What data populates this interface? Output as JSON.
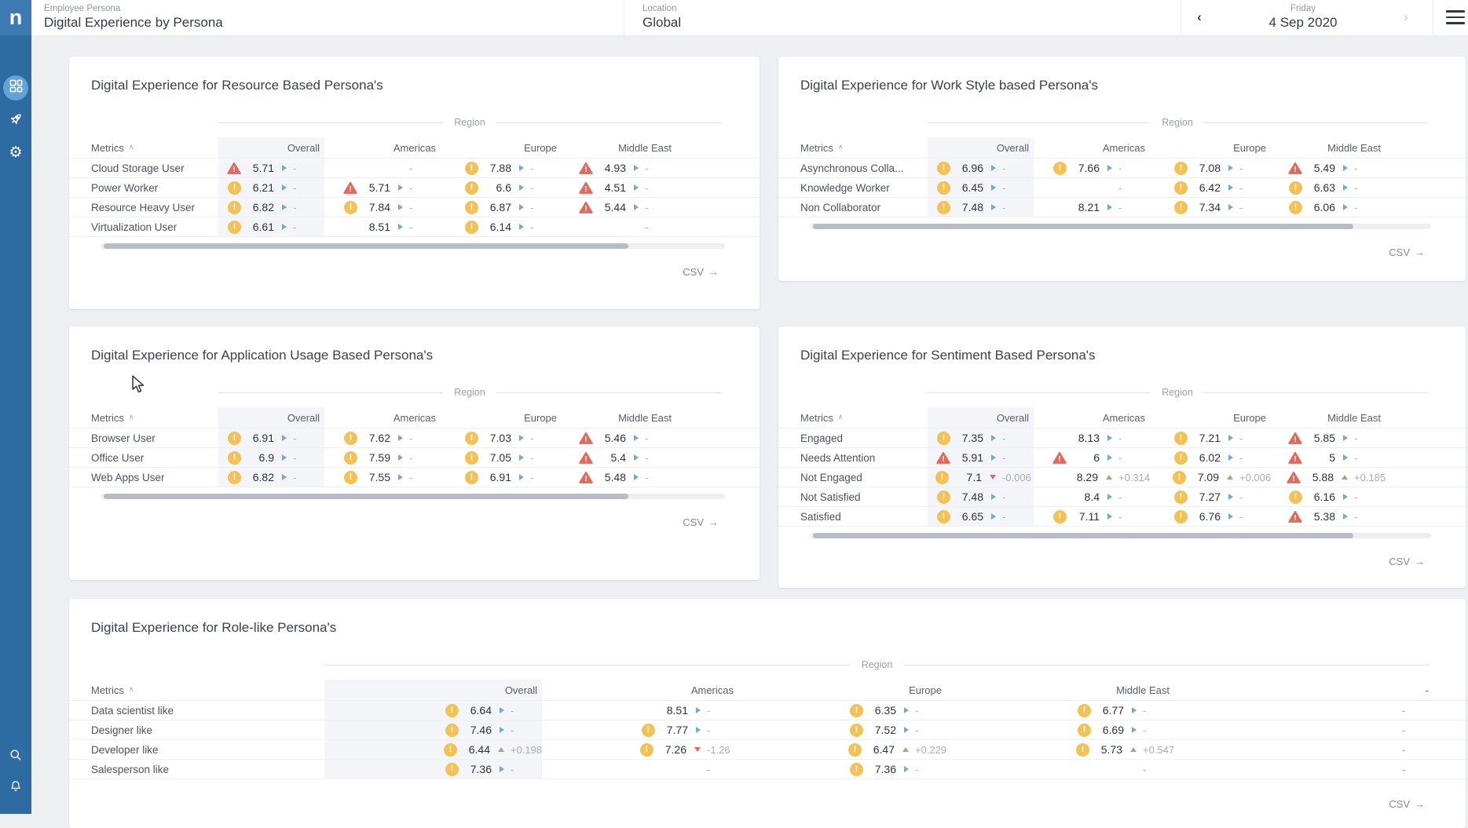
{
  "app": {
    "logo_letter": "n"
  },
  "colors": {
    "sidebar": "#2e6ba3",
    "sidebar_logo": "#3d7ab2",
    "active_nav": "#61a3d8",
    "warning": "#f3c156",
    "alert": "#e4695d",
    "trend_flat": "#73a9d9",
    "trend_up": "#8cb873",
    "trend_down": "#e4695d",
    "overall_band": "#f3f5f8",
    "page_bg": "#edeff3"
  },
  "header": {
    "context_label": "Employee Persona",
    "title": "Digital Experience by Persona",
    "location_label": "Location",
    "location_value": "Global",
    "date_day": "Friday",
    "date_value": "4 Sep 2020",
    "prev_icon": "‹",
    "next_icon": "›"
  },
  "sidebar_icons": [
    "dashboards",
    "launch",
    "settings",
    "search",
    "notifications"
  ],
  "table_common": {
    "empty_placeholder": "-",
    "sort_caret": "∧",
    "csv_label": "CSV",
    "csv_arrow": "→",
    "cell_format": [
      "status",
      "value",
      "trend",
      "trend_value"
    ]
  },
  "cards": [
    {
      "title": "Digital Experience for Resource Based Persona's",
      "region_label": "Region",
      "columns": {
        "metric": "Metrics",
        "regions": [
          "Overall",
          "Americas",
          "Europe",
          "Middle East"
        ]
      },
      "rows": [
        {
          "metric": "Cloud Storage User",
          "cells": [
            [
              "alert",
              "5.71",
              "flat",
              "-"
            ],
            null,
            [
              "warn",
              "7.88",
              "flat",
              "-"
            ],
            [
              "alert",
              "4.93",
              "flat",
              "-"
            ]
          ]
        },
        {
          "metric": "Power Worker",
          "cells": [
            [
              "warn",
              "6.21",
              "flat",
              "-"
            ],
            [
              "alert",
              "5.71",
              "flat",
              "-"
            ],
            [
              "warn",
              "6.6",
              "flat",
              "-"
            ],
            [
              "alert",
              "4.51",
              "flat",
              "-"
            ]
          ]
        },
        {
          "metric": "Resource Heavy User",
          "cells": [
            [
              "warn",
              "6.82",
              "flat",
              "-"
            ],
            [
              "warn",
              "7.84",
              "flat",
              "-"
            ],
            [
              "warn",
              "6.87",
              "flat",
              "-"
            ],
            [
              "alert",
              "5.44",
              "flat",
              "-"
            ]
          ]
        },
        {
          "metric": "Virtualization User",
          "cells": [
            [
              "warn",
              "6.61",
              "flat",
              "-"
            ],
            [
              null,
              "8.51",
              "flat",
              "-"
            ],
            [
              "warn",
              "6.14",
              "flat",
              "-"
            ],
            null
          ]
        }
      ],
      "scrollbar_thumb_percent": 84
    },
    {
      "title": "Digital Experience for Work Style based Persona's",
      "region_label": "Region",
      "columns": {
        "metric": "Metrics",
        "regions": [
          "Overall",
          "Americas",
          "Europe",
          "Middle East"
        ]
      },
      "rows": [
        {
          "metric": "Asynchronous Colla...",
          "cells": [
            [
              "warn",
              "6.96",
              "flat",
              "-"
            ],
            [
              "warn",
              "7.66",
              "flat",
              "-"
            ],
            [
              "warn",
              "7.08",
              "flat",
              "-"
            ],
            [
              "alert",
              "5.49",
              "flat",
              "-"
            ]
          ]
        },
        {
          "metric": "Knowledge Worker",
          "cells": [
            [
              "warn",
              "6.45",
              "flat",
              "-"
            ],
            null,
            [
              "warn",
              "6.42",
              "flat",
              "-"
            ],
            [
              "warn",
              "6.63",
              "flat",
              "-"
            ]
          ]
        },
        {
          "metric": "Non Collaborator",
          "cells": [
            [
              "warn",
              "7.48",
              "flat",
              "-"
            ],
            [
              null,
              "8.21",
              "flat",
              "-"
            ],
            [
              "warn",
              "7.34",
              "flat",
              "-"
            ],
            [
              "warn",
              "6.06",
              "flat",
              "-"
            ]
          ]
        }
      ],
      "scrollbar_thumb_percent": 87
    },
    {
      "title": "Digital Experience for Application Usage Based Persona's",
      "region_label": "Region",
      "columns": {
        "metric": "Metrics",
        "regions": [
          "Overall",
          "Americas",
          "Europe",
          "Middle East"
        ]
      },
      "rows": [
        {
          "metric": "Browser User",
          "cells": [
            [
              "warn",
              "6.91",
              "flat",
              "-"
            ],
            [
              "warn",
              "7.62",
              "flat",
              "-"
            ],
            [
              "warn",
              "7.03",
              "flat",
              "-"
            ],
            [
              "alert",
              "5.46",
              "flat",
              "-"
            ]
          ]
        },
        {
          "metric": "Office User",
          "cells": [
            [
              "warn",
              "6.9",
              "flat",
              "-"
            ],
            [
              "warn",
              "7.59",
              "flat",
              "-"
            ],
            [
              "warn",
              "7.05",
              "flat",
              "-"
            ],
            [
              "alert",
              "5.4",
              "flat",
              "-"
            ]
          ]
        },
        {
          "metric": "Web Apps User",
          "cells": [
            [
              "warn",
              "6.82",
              "flat",
              "-"
            ],
            [
              "warn",
              "7.55",
              "flat",
              "-"
            ],
            [
              "warn",
              "6.91",
              "flat",
              "-"
            ],
            [
              "alert",
              "5.48",
              "flat",
              "-"
            ]
          ]
        }
      ],
      "scrollbar_thumb_percent": 84
    },
    {
      "title": "Digital Experience for Sentiment Based Persona's",
      "region_label": "Region",
      "columns": {
        "metric": "Metrics",
        "regions": [
          "Overall",
          "Americas",
          "Europe",
          "Middle East"
        ]
      },
      "rows": [
        {
          "metric": "Engaged",
          "cells": [
            [
              "warn",
              "7.35",
              "flat",
              "-"
            ],
            [
              null,
              "8.13",
              "flat",
              "-"
            ],
            [
              "warn",
              "7.21",
              "flat",
              "-"
            ],
            [
              "alert",
              "5.85",
              "flat",
              "-"
            ]
          ]
        },
        {
          "metric": "Needs Attention",
          "cells": [
            [
              "alert",
              "5.91",
              "flat",
              "-"
            ],
            [
              "alert",
              "6",
              "flat",
              "-"
            ],
            [
              "warn",
              "6.02",
              "flat",
              "-"
            ],
            [
              "alert",
              "5",
              "flat",
              "-"
            ]
          ]
        },
        {
          "metric": "Not Engaged",
          "cells": [
            [
              "warn",
              "7.1",
              "down",
              "-0.006"
            ],
            [
              null,
              "8.29",
              "up",
              "+0.314"
            ],
            [
              "warn",
              "7.09",
              "up",
              "+0.006"
            ],
            [
              "alert",
              "5.88",
              "up",
              "+0.185"
            ]
          ]
        },
        {
          "metric": "Not Satisfied",
          "cells": [
            [
              "warn",
              "7.48",
              "flat",
              "-"
            ],
            [
              null,
              "8.4",
              "flat",
              "-"
            ],
            [
              "warn",
              "7.27",
              "flat",
              "-"
            ],
            [
              "warn",
              "6.16",
              "flat",
              "-"
            ]
          ]
        },
        {
          "metric": "Satisfied",
          "cells": [
            [
              "warn",
              "6.65",
              "flat",
              "-"
            ],
            [
              "warn",
              "7.11",
              "flat",
              "-"
            ],
            [
              "warn",
              "6.76",
              "flat",
              "-"
            ],
            [
              "alert",
              "5.38",
              "flat",
              "-"
            ]
          ]
        }
      ],
      "scrollbar_thumb_percent": 87
    },
    {
      "title": "Digital Experience for Role-like Persona's",
      "region_label": "Region",
      "columns": {
        "metric": "Metrics",
        "regions": [
          "Overall",
          "Americas",
          "Europe",
          "Middle East",
          "-"
        ]
      },
      "rows": [
        {
          "metric": "Data scientist like",
          "cells": [
            [
              "warn",
              "6.64",
              "flat",
              "-"
            ],
            [
              null,
              "8.51",
              "flat",
              "-"
            ],
            [
              "warn",
              "6.35",
              "flat",
              "-"
            ],
            [
              "warn",
              "6.77",
              "flat",
              "-"
            ],
            null
          ]
        },
        {
          "metric": "Designer like",
          "cells": [
            [
              "warn",
              "7.46",
              "flat",
              "-"
            ],
            [
              "warn",
              "7.77",
              "flat",
              "-"
            ],
            [
              "warn",
              "7.52",
              "flat",
              "-"
            ],
            [
              "warn",
              "6.69",
              "flat",
              "-"
            ],
            null
          ]
        },
        {
          "metric": "Developer like",
          "cells": [
            [
              "warn",
              "6.44",
              "up",
              "+0.198"
            ],
            [
              "warn",
              "7.26",
              "down",
              "-1.26"
            ],
            [
              "warn",
              "6.47",
              "up",
              "+0.229"
            ],
            [
              "warn",
              "5.73",
              "up",
              "+0.547"
            ],
            null
          ]
        },
        {
          "metric": "Salesperson like",
          "cells": [
            [
              "warn",
              "7.36",
              "flat",
              "-"
            ],
            null,
            [
              "warn",
              "7.36",
              "flat",
              "-"
            ],
            null,
            null
          ]
        }
      ],
      "scrollbar_thumb_percent": null
    }
  ]
}
